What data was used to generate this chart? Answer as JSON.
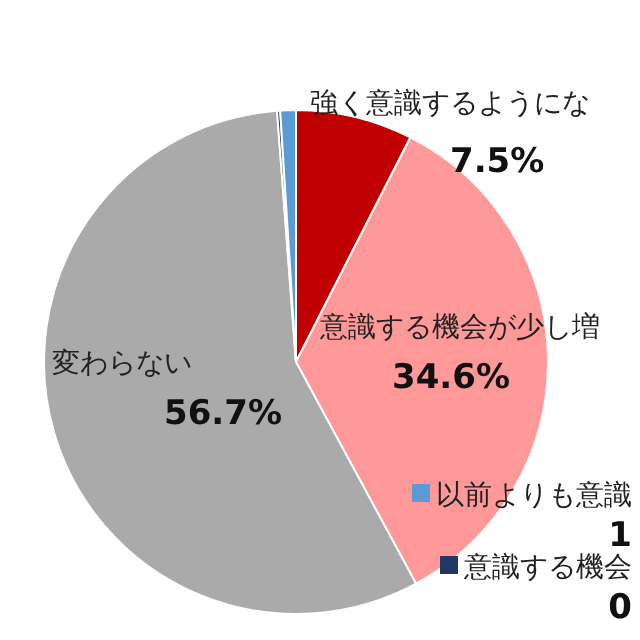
{
  "chart_data": {
    "type": "pie",
    "categories": [
      "強く意識するようにな",
      "意識する機会が少し増",
      "変わらない",
      "意識する機会",
      "以前よりも意識"
    ],
    "values": [
      7.5,
      34.6,
      56.7,
      0.2,
      1.0
    ],
    "colors": [
      "#c00000",
      "#ff9999",
      "#aaaaaa",
      "#1f3864",
      "#5b9bd5"
    ],
    "value_labels": [
      "7.5%",
      "34.6%",
      "56.7%",
      "0",
      "1"
    ],
    "legend": "bottom right"
  }
}
